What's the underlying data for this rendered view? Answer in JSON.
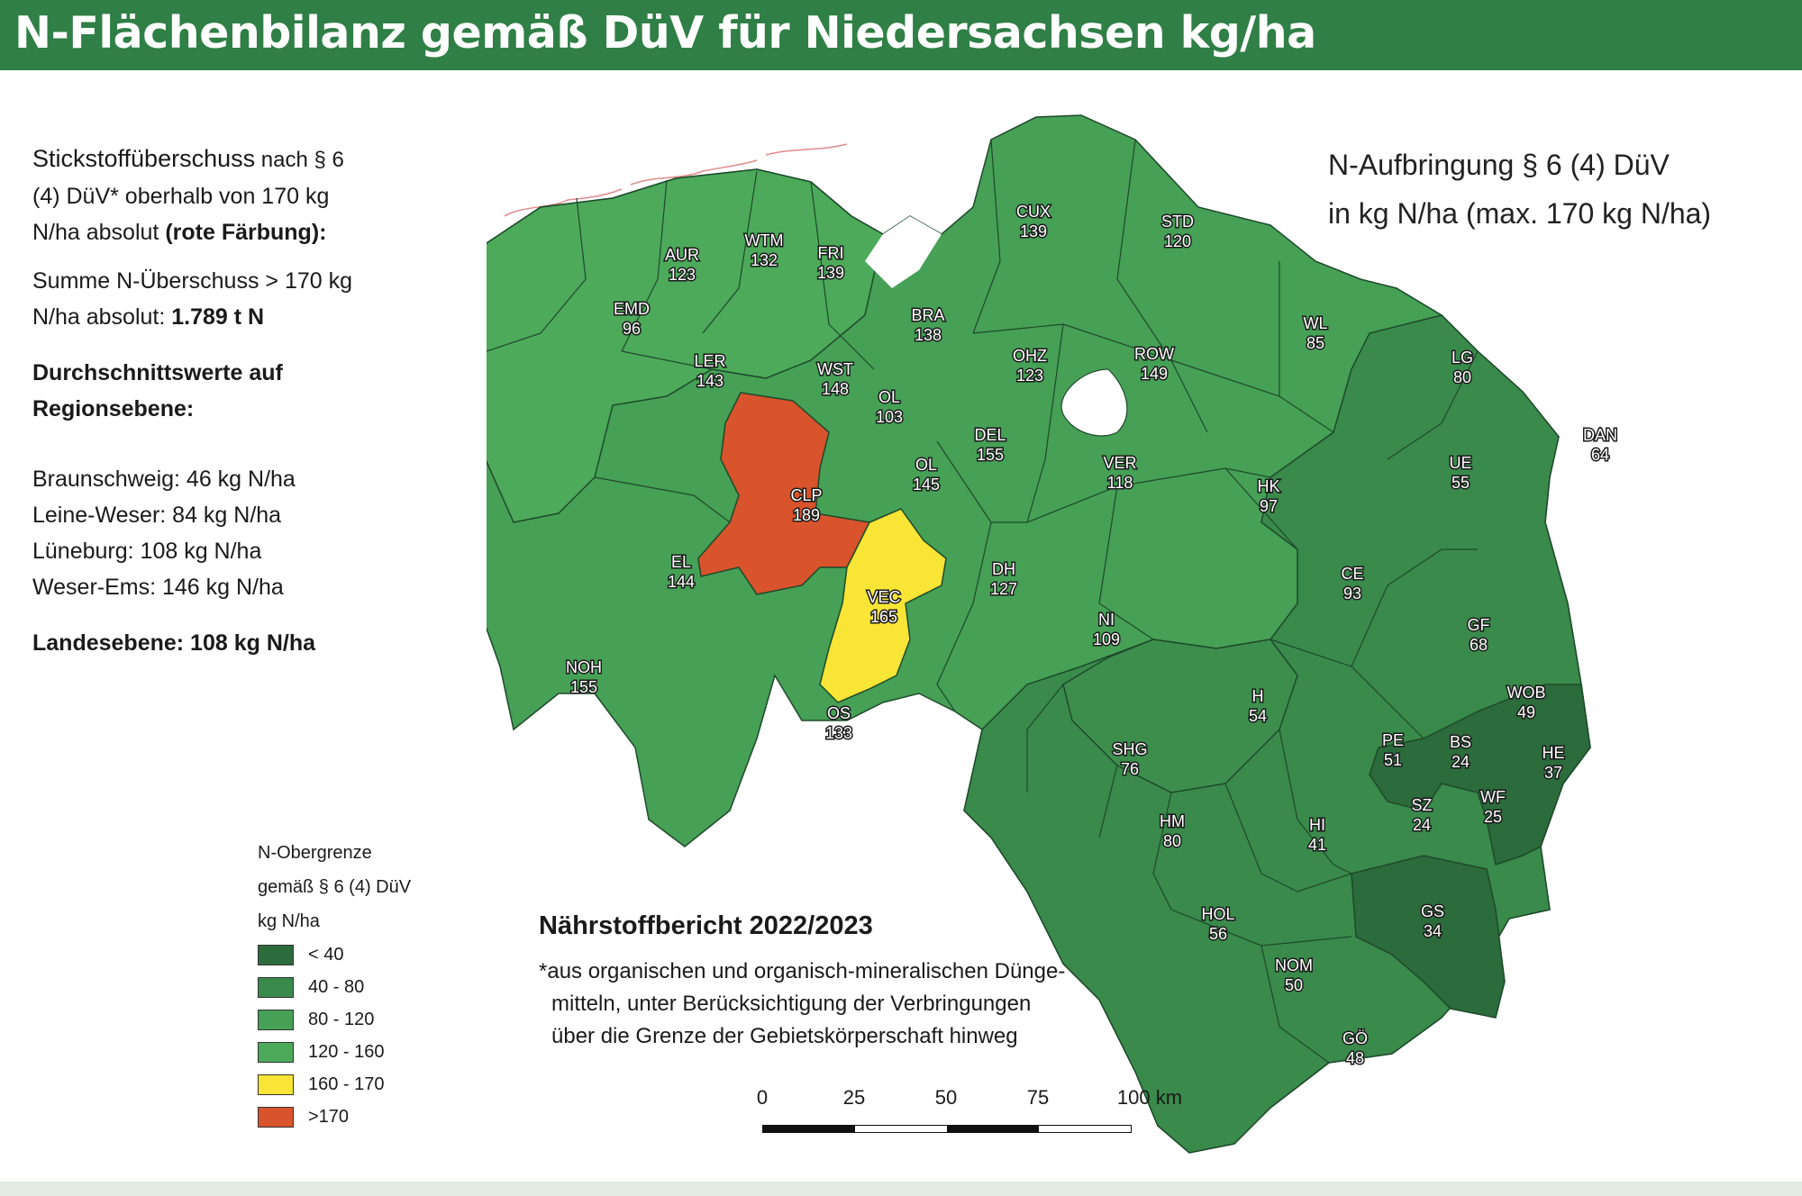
{
  "title": "N-Flächenbilanz gemäß DüV für Niedersachsen kg/ha",
  "info": {
    "line1_plain": "Stickstoffüberschuss",
    "line1_rest": " nach § 6",
    "line2": "(4) DüV* oberhalb von 170 kg",
    "line3_plain": "N/ha absolut ",
    "line3_bold": "(rote Färbung):",
    "sum_line1": "Summe N-Überschuss > 170 kg",
    "sum_line2_plain": "N/ha absolut: ",
    "sum_line2_bold": "1.789 t N",
    "avg_heading_1": "Durchschnittswerte auf",
    "avg_heading_2": "Regionsebene:",
    "regions": [
      "Braunschweig: 46 kg N/ha",
      "Leine-Weser: 84 kg N/ha",
      "Lüneburg: 108 kg N/ha",
      "Weser-Ems: 146 kg N/ha"
    ],
    "state_level": "Landesebene: 108 kg N/ha"
  },
  "map_title": {
    "line1": "N-Aufbringung § 6 (4) DüV",
    "line2": "in kg N/ha (max. 170 kg N/ha)"
  },
  "legend": {
    "title_lines": [
      "N-Obergrenze",
      "gemäß § 6 (4) DüV",
      "kg N/ha"
    ],
    "items": [
      {
        "label": "< 40",
        "color": "#2c6b3c"
      },
      {
        "label": "40 - 80",
        "color": "#3a8a4b"
      },
      {
        "label": "80 - 120",
        "color": "#46a056"
      },
      {
        "label": "120 - 160",
        "color": "#4caa5a"
      },
      {
        "label": "160 - 170",
        "color": "#f9e536"
      },
      {
        "label": ">170",
        "color": "#d9532c"
      }
    ]
  },
  "notes": {
    "title": "Nährstoffbericht 2022/2023",
    "lines": [
      "*aus organischen und organisch-mineralischen Dünge-",
      "mitteln, unter Berücksichtigung der Verbringungen",
      "über die Grenze der Gebietskörperschaft hinweg"
    ]
  },
  "scale": {
    "ticks": [
      "0",
      "25",
      "50",
      "75",
      "100 km"
    ]
  },
  "districts": [
    {
      "code": "AUR",
      "value": "123"
    },
    {
      "code": "WTM",
      "value": "132"
    },
    {
      "code": "FRI",
      "value": "139"
    },
    {
      "code": "EMD",
      "value": "96"
    },
    {
      "code": "LER",
      "value": "143"
    },
    {
      "code": "WST",
      "value": "148"
    },
    {
      "code": "BRA",
      "value": "138"
    },
    {
      "code": "OL",
      "value": "103"
    },
    {
      "code": "CUX",
      "value": "139"
    },
    {
      "code": "STD",
      "value": "120"
    },
    {
      "code": "OHZ",
      "value": "123"
    },
    {
      "code": "ROW",
      "value": "149"
    },
    {
      "code": "WL",
      "value": "85"
    },
    {
      "code": "LG",
      "value": "80"
    },
    {
      "code": "DAN",
      "value": "64"
    },
    {
      "code": "UE",
      "value": "55"
    },
    {
      "code": "DEL",
      "value": "155"
    },
    {
      "code": "OL",
      "value": "145"
    },
    {
      "code": "CLP",
      "value": "189"
    },
    {
      "code": "VER",
      "value": "118"
    },
    {
      "code": "HK",
      "value": "97"
    },
    {
      "code": "EL",
      "value": "144"
    },
    {
      "code": "VEC",
      "value": "165"
    },
    {
      "code": "DH",
      "value": "127"
    },
    {
      "code": "CE",
      "value": "93"
    },
    {
      "code": "NI",
      "value": "109"
    },
    {
      "code": "GF",
      "value": "68"
    },
    {
      "code": "NOH",
      "value": "155"
    },
    {
      "code": "OS",
      "value": "133"
    },
    {
      "code": "H",
      "value": "54"
    },
    {
      "code": "WOB",
      "value": "49"
    },
    {
      "code": "SHG",
      "value": "76"
    },
    {
      "code": "PE",
      "value": "51"
    },
    {
      "code": "BS",
      "value": "24"
    },
    {
      "code": "HE",
      "value": "37"
    },
    {
      "code": "SZ",
      "value": "24"
    },
    {
      "code": "WF",
      "value": "25"
    },
    {
      "code": "HM",
      "value": "80"
    },
    {
      "code": "HI",
      "value": "41"
    },
    {
      "code": "HOL",
      "value": "56"
    },
    {
      "code": "GS",
      "value": "34"
    },
    {
      "code": "NOM",
      "value": "50"
    },
    {
      "code": "GÖ",
      "value": "48"
    }
  ]
}
